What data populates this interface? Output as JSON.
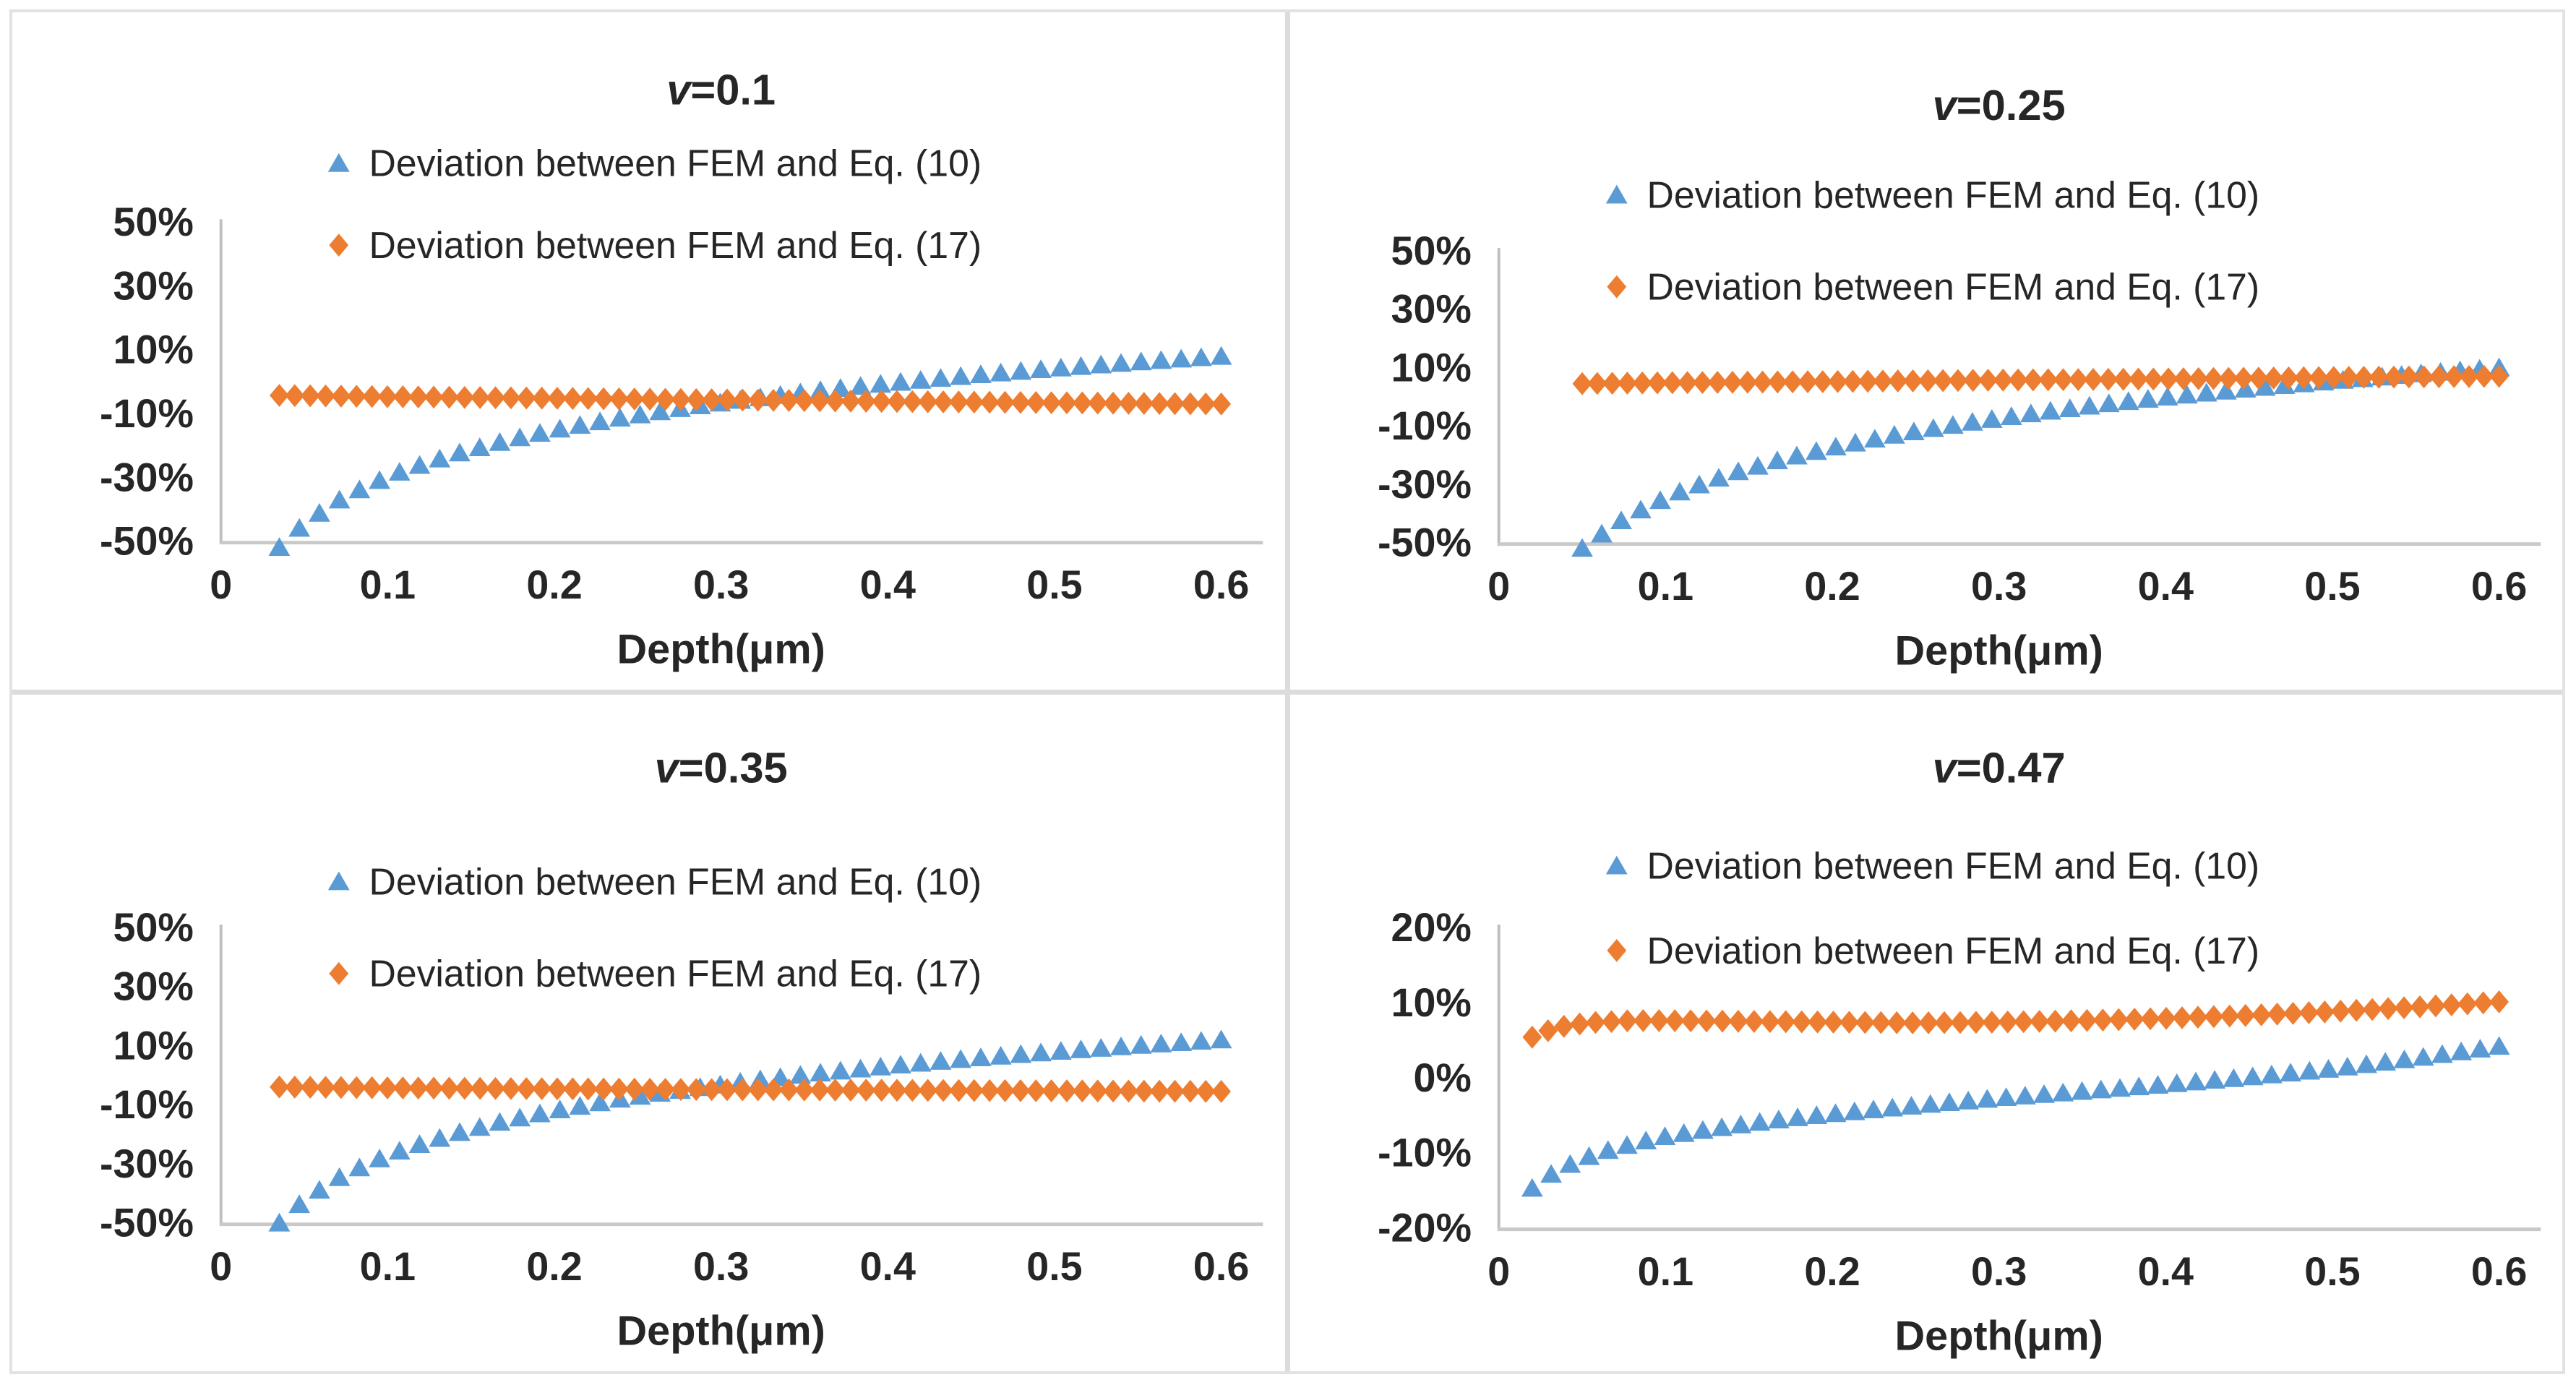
{
  "figure": {
    "background": "#ffffff",
    "divider_color": "#dcdcdc",
    "text_color": "#262626",
    "axis_line_color": "#bfbfbf",
    "baseline_color": "#c9c9c9",
    "accent_blue": "#5B9BD5",
    "accent_orange": "#ED7D31"
  },
  "chart_data": [
    {
      "type": "scatter",
      "title": {
        "italic": "v",
        "rest": "=0.1",
        "full": "v=0.1"
      },
      "xlabel": "Depth(μm)",
      "xlim": [
        0,
        0.6
      ],
      "ylim": [
        -50,
        50
      ],
      "grid": false,
      "legend_position": "top-center-stacked",
      "xticks": {
        "values": [
          0,
          0.1,
          0.2,
          0.3,
          0.4,
          0.5,
          0.6
        ],
        "labels": [
          "0",
          "0.1",
          "0.2",
          "0.3",
          "0.4",
          "0.5",
          "0.6"
        ]
      },
      "yticks": {
        "values": [
          50,
          30,
          10,
          -10,
          -30,
          -50
        ],
        "labels": [
          "50%",
          "30%",
          "10%",
          "-10%",
          "-30%",
          "-50%"
        ]
      },
      "series": [
        {
          "name": "Deviation between FEM and Eq. (10)",
          "marker": "triangle",
          "color": "#5B9BD5",
          "points": 48,
          "anchors": [
            [
              0.035,
              -51.9
            ],
            [
              0.05,
              -44.4
            ],
            [
              0.07,
              -37.3
            ],
            [
              0.09,
              -32
            ],
            [
              0.11,
              -27.7
            ],
            [
              0.14,
              -22.7
            ],
            [
              0.17,
              -18.6
            ],
            [
              0.2,
              -15.1
            ],
            [
              0.24,
              -11.3
            ],
            [
              0.28,
              -8
            ],
            [
              0.32,
              -5.2
            ],
            [
              0.36,
              -2.7
            ],
            [
              0.4,
              -0.5
            ],
            [
              0.45,
              2
            ],
            [
              0.5,
              4.2
            ],
            [
              0.55,
              6.2
            ],
            [
              0.6,
              8
            ]
          ]
        },
        {
          "name": "Deviation between FEM and Eq. (17)",
          "marker": "diamond",
          "color": "#ED7D31",
          "points": 62,
          "anchors": [
            [
              0.035,
              -4.3
            ],
            [
              0.1,
              -4.7
            ],
            [
              0.2,
              -5.2
            ],
            [
              0.3,
              -5.7
            ],
            [
              0.4,
              -6.2
            ],
            [
              0.5,
              -6.6
            ],
            [
              0.6,
              -7
            ]
          ]
        }
      ]
    },
    {
      "type": "scatter",
      "title": {
        "italic": "v",
        "rest": "=0.25",
        "full": "v=0.25"
      },
      "xlabel": "Depth(μm)",
      "xlim": [
        0,
        0.6
      ],
      "ylim": [
        -50,
        50
      ],
      "grid": false,
      "legend_position": "top-center-stacked",
      "xticks": {
        "values": [
          0,
          0.1,
          0.2,
          0.3,
          0.4,
          0.5,
          0.6
        ],
        "labels": [
          "0",
          "0.1",
          "0.2",
          "0.3",
          "0.4",
          "0.5",
          "0.6"
        ]
      },
      "yticks": {
        "values": [
          50,
          30,
          10,
          -10,
          -30,
          -50
        ],
        "labels": [
          "50%",
          "30%",
          "10%",
          "-10%",
          "-30%",
          "-50%"
        ]
      },
      "series": [
        {
          "name": "Deviation between FEM and Eq. (10)",
          "marker": "triangle",
          "color": "#5B9BD5",
          "points": 48,
          "anchors": [
            [
              0.05,
              -51.9
            ],
            [
              0.07,
              -43.5
            ],
            [
              0.09,
              -37.2
            ],
            [
              0.11,
              -32.2
            ],
            [
              0.14,
              -26.2
            ],
            [
              0.17,
              -21.4
            ],
            [
              0.2,
              -17.4
            ],
            [
              0.24,
              -12.8
            ],
            [
              0.28,
              -9
            ],
            [
              0.32,
              -5.7
            ],
            [
              0.36,
              -2.7
            ],
            [
              0.4,
              -0.1
            ],
            [
              0.45,
              2.8
            ],
            [
              0.5,
              5.4
            ],
            [
              0.55,
              7.8
            ],
            [
              0.6,
              10
            ]
          ]
        },
        {
          "name": "Deviation between FEM and Eq. (17)",
          "marker": "diamond",
          "color": "#ED7D31",
          "points": 62,
          "anchors": [
            [
              0.05,
              4.5
            ],
            [
              0.1,
              4.8
            ],
            [
              0.2,
              5.2
            ],
            [
              0.3,
              5.7
            ],
            [
              0.4,
              6.1
            ],
            [
              0.5,
              6.6
            ],
            [
              0.6,
              7
            ]
          ]
        }
      ]
    },
    {
      "type": "scatter",
      "title": {
        "italic": "v",
        "rest": "=0.35",
        "full": "v=0.35"
      },
      "xlabel": "Depth(μm)",
      "xlim": [
        0,
        0.6
      ],
      "ylim": [
        -50,
        50
      ],
      "grid": false,
      "legend_position": "top-center-stacked",
      "xticks": {
        "values": [
          0,
          0.1,
          0.2,
          0.3,
          0.4,
          0.5,
          0.6
        ],
        "labels": [
          "0",
          "0.1",
          "0.2",
          "0.3",
          "0.4",
          "0.5",
          "0.6"
        ]
      },
      "yticks": {
        "values": [
          50,
          30,
          10,
          -10,
          -30,
          -50
        ],
        "labels": [
          "50%",
          "30%",
          "10%",
          "-10%",
          "-30%",
          "-50%"
        ]
      },
      "series": [
        {
          "name": "Deviation between FEM and Eq. (10)",
          "marker": "triangle",
          "color": "#5B9BD5",
          "points": 48,
          "anchors": [
            [
              0.035,
              -50
            ],
            [
              0.05,
              -42.2
            ],
            [
              0.07,
              -34.9
            ],
            [
              0.09,
              -29.4
            ],
            [
              0.11,
              -25
            ],
            [
              0.14,
              -19.8
            ],
            [
              0.17,
              -15.5
            ],
            [
              0.2,
              -12
            ],
            [
              0.24,
              -8
            ],
            [
              0.28,
              -4.7
            ],
            [
              0.32,
              -1.7
            ],
            [
              0.36,
              0.8
            ],
            [
              0.4,
              3.1
            ],
            [
              0.45,
              5.7
            ],
            [
              0.5,
              8
            ],
            [
              0.55,
              10.1
            ],
            [
              0.6,
              12
            ]
          ]
        },
        {
          "name": "Deviation between FEM and Eq. (17)",
          "marker": "diamond",
          "color": "#ED7D31",
          "points": 62,
          "anchors": [
            [
              0.035,
              -4
            ],
            [
              0.1,
              -4.3
            ],
            [
              0.2,
              -4.6
            ],
            [
              0.3,
              -4.9
            ],
            [
              0.4,
              -5.1
            ],
            [
              0.5,
              -5.3
            ],
            [
              0.6,
              -5.5
            ]
          ]
        }
      ]
    },
    {
      "type": "scatter",
      "title": {
        "italic": "v",
        "rest": "=0.47",
        "full": "v=0.47"
      },
      "xlabel": "Depth(μm)",
      "xlim": [
        0,
        0.6
      ],
      "ylim": [
        -20,
        20
      ],
      "grid": false,
      "legend_position": "top-center-stacked",
      "xticks": {
        "values": [
          0,
          0.1,
          0.2,
          0.3,
          0.4,
          0.5,
          0.6
        ],
        "labels": [
          "0",
          "0.1",
          "0.2",
          "0.3",
          "0.4",
          "0.5",
          "0.6"
        ]
      },
      "yticks": {
        "values": [
          20,
          10,
          0,
          -10,
          -20
        ],
        "labels": [
          "20%",
          "10%",
          "0%",
          "-10%",
          "-20%"
        ]
      },
      "series": [
        {
          "name": "Deviation between FEM and Eq. (10)",
          "marker": "triangle",
          "color": "#5B9BD5",
          "points": 52,
          "anchors": [
            [
              0.02,
              -14.7
            ],
            [
              0.03,
              -13
            ],
            [
              0.04,
              -11.8
            ],
            [
              0.05,
              -10.8
            ],
            [
              0.06,
              -10
            ],
            [
              0.08,
              -8.8
            ],
            [
              0.1,
              -7.8
            ],
            [
              0.125,
              -6.9
            ],
            [
              0.15,
              -6.1
            ],
            [
              0.175,
              -5.4
            ],
            [
              0.2,
              -4.8
            ],
            [
              0.25,
              -3.7
            ],
            [
              0.3,
              -2.7
            ],
            [
              0.35,
              -1.8
            ],
            [
              0.4,
              -0.9
            ],
            [
              0.45,
              0.1
            ],
            [
              0.5,
              1.2
            ],
            [
              0.55,
              2.6
            ],
            [
              0.6,
              4.2
            ]
          ]
        },
        {
          "name": "Deviation between FEM and Eq. (17)",
          "marker": "diamond",
          "color": "#ED7D31",
          "points": 62,
          "anchors": [
            [
              0.02,
              5.4
            ],
            [
              0.03,
              6.3
            ],
            [
              0.04,
              6.9
            ],
            [
              0.05,
              7.2
            ],
            [
              0.06,
              7.4
            ],
            [
              0.08,
              7.6
            ],
            [
              0.1,
              7.6
            ],
            [
              0.15,
              7.5
            ],
            [
              0.2,
              7.4
            ],
            [
              0.25,
              7.3
            ],
            [
              0.3,
              7.4
            ],
            [
              0.35,
              7.6
            ],
            [
              0.4,
              7.9
            ],
            [
              0.45,
              8.3
            ],
            [
              0.5,
              8.8
            ],
            [
              0.55,
              9.4
            ],
            [
              0.6,
              10.1
            ]
          ]
        }
      ]
    }
  ]
}
